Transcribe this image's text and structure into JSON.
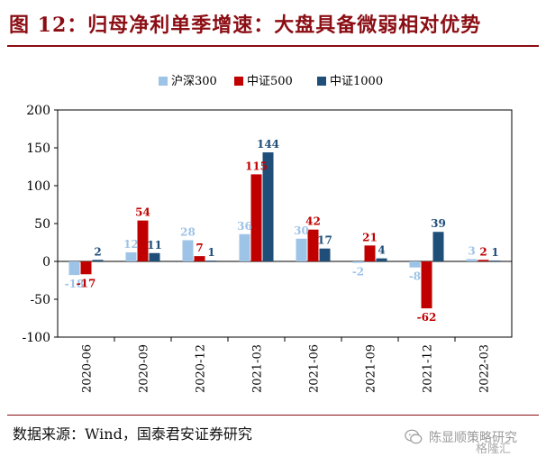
{
  "title": "图 12：归母净利单季增速：大盘具备微弱相对优势",
  "source": "数据来源：Wind，国泰君安证券研究",
  "watermark": {
    "text": "陈显顺策略研究",
    "brand": "格隆汇",
    "icon": "wechat-icon"
  },
  "chart_data": {
    "type": "bar",
    "categories": [
      "2020-06",
      "2020-09",
      "2020-12",
      "2021-03",
      "2021-06",
      "2021-09",
      "2021-12",
      "2022-03"
    ],
    "series": [
      {
        "name": "沪深300",
        "color": "#9dc3e6",
        "values": [
          -18,
          12,
          28,
          36,
          30,
          -2,
          -8,
          3
        ]
      },
      {
        "name": "中证500",
        "color": "#c00000",
        "values": [
          -17,
          54,
          7,
          115,
          42,
          21,
          -62,
          2
        ]
      },
      {
        "name": "中证1000",
        "color": "#1f4e79",
        "values": [
          2,
          11,
          1,
          144,
          17,
          4,
          39,
          1
        ]
      }
    ],
    "ylim": [
      -100,
      200
    ],
    "yticks": [
      -100,
      -50,
      0,
      50,
      100,
      150,
      200
    ],
    "grid": false,
    "legend": "top-center",
    "data_labels": true
  }
}
